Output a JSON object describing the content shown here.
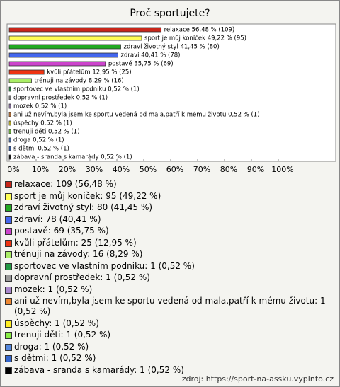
{
  "chart_data": {
    "type": "bar",
    "orientation": "horizontal",
    "title": "Proč sportujete?",
    "categories": [
      "relaxace",
      "sport je můj koníček",
      "zdraví životný styl",
      "zdraví",
      "postavě",
      "kvůli přátelům",
      "trénuji na závody",
      "sportovec ve vlastním podniku",
      "dopravní prostředek",
      "mozek",
      "ani už nevím,byla jsem ke sportu vedená od mala,patří k mému životu",
      "úspěchy",
      "trenuji děti",
      "droga",
      "s dětmi",
      "zábava - sranda s kamarády"
    ],
    "values": [
      56.48,
      49.22,
      41.45,
      40.41,
      35.75,
      12.95,
      8.29,
      0.52,
      0.52,
      0.52,
      0.52,
      0.52,
      0.52,
      0.52,
      0.52,
      0.52
    ],
    "value_labels": [
      "relaxace 56,48 % (109)",
      "sport je můj koníček 49,22 % (95)",
      "zdraví životný styl 41,45 % (80)",
      "zdraví 40,41 % (78)",
      "postavě 35,75 % (69)",
      "kvůli přátelům 12,95 % (25)",
      "trénuji na závody 8,29 % (16)",
      "sportovec ve vlastním podniku 0,52 % (1)",
      "dopravní prostředek 0,52 % (1)",
      "mozek 0,52 % (1)",
      "ani už nevím,byla jsem ke sportu vedená od mala,patří k mému životu 0,52 % (1)",
      "úspěchy 0,52 % (1)",
      "trenuji děti 0,52 % (1)",
      "droga 0,52 % (1)",
      "s dětmi 0,52 % (1)",
      "zábava - sranda s kamarády 0,52 % (1)"
    ],
    "colors": [
      "#c8261a",
      "#ffff55",
      "#22aa22",
      "#4466ee",
      "#cc44cc",
      "#ee3311",
      "#aaee66",
      "#229944",
      "#999999",
      "#aa88cc",
      "#ee8833",
      "#ffee22",
      "#88ee44",
      "#5588dd",
      "#3366cc",
      "#000000"
    ],
    "legend": [
      "relaxace: 109 (56,48 %)",
      "sport je můj koníček: 95 (49,22 %)",
      "zdraví životný styl: 80 (41,45 %)",
      "zdraví: 78 (40,41 %)",
      "postavě: 69 (35,75 %)",
      "kvůli přátelům: 25 (12,95 %)",
      "trénuji na závody: 16 (8,29 %)",
      "sportovec ve vlastním podniku: 1 (0,52 %)",
      "dopravní prostředek: 1 (0,52 %)",
      "mozek: 1 (0,52 %)",
      "ani už nevím,byla jsem ke sportu vedená od mala,patří k mému životu: 1 (0,52 %)",
      "úspěchy: 1 (0,52 %)",
      "trenuji děti: 1 (0,52 %)",
      "droga: 1 (0,52 %)",
      "s dětmi: 1 (0,52 %)",
      "zábava - sranda s kamarády: 1 (0,52 %)"
    ],
    "xlim": [
      0,
      100
    ],
    "xticks": [
      {
        "value": 0,
        "label": "0%"
      },
      {
        "value": 10,
        "label": "10%"
      },
      {
        "value": 20,
        "label": "20%"
      },
      {
        "value": 30,
        "label": "30%"
      },
      {
        "value": 40,
        "label": "40%"
      },
      {
        "value": 50,
        "label": "50%"
      },
      {
        "value": 60,
        "label": "60%"
      },
      {
        "value": 70,
        "label": "70%"
      },
      {
        "value": 80,
        "label": "80%"
      },
      {
        "value": 90,
        "label": "90%"
      },
      {
        "value": 100,
        "label": "100%"
      }
    ],
    "source": "zdroj: https://sport-na-assku.vyplnto.cz"
  }
}
